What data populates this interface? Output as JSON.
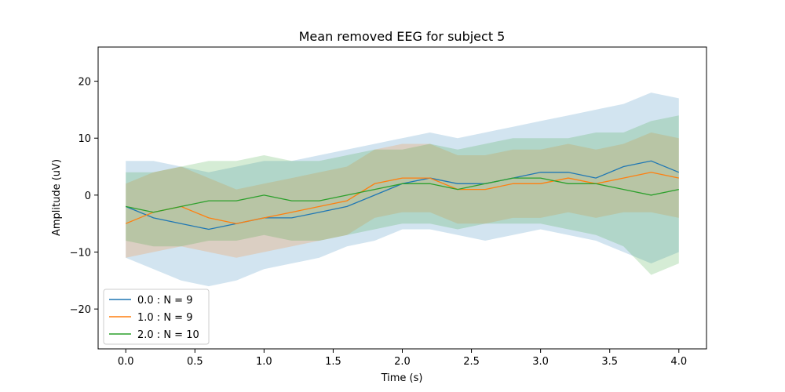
{
  "chart_data": {
    "type": "line",
    "title": "Mean removed EEG for subject 5",
    "xlabel": "Time (s)",
    "ylabel": "Amplitude (uV)",
    "xlim": [
      -0.2,
      4.2
    ],
    "ylim": [
      -27,
      26
    ],
    "xticks": [
      0.0,
      0.5,
      1.0,
      1.5,
      2.0,
      2.5,
      3.0,
      3.5,
      4.0
    ],
    "xtick_labels": [
      "0.0",
      "0.5",
      "1.0",
      "1.5",
      "2.0",
      "2.5",
      "3.0",
      "3.5",
      "4.0"
    ],
    "yticks": [
      -20,
      -10,
      0,
      10,
      20
    ],
    "ytick_labels": [
      "−20",
      "−10",
      "0",
      "10",
      "20"
    ],
    "grid": false,
    "legend_position": "lower-left",
    "x": [
      0.0,
      0.2,
      0.4,
      0.6,
      0.8,
      1.0,
      1.2,
      1.4,
      1.6,
      1.8,
      2.0,
      2.2,
      2.4,
      2.6,
      2.8,
      3.0,
      3.2,
      3.4,
      3.6,
      3.8,
      4.0
    ],
    "series": [
      {
        "name": "0.0 : N = 9",
        "color": "#1f77b4",
        "values": [
          -2,
          -4,
          -5,
          -6,
          -5,
          -4,
          -4,
          -3,
          -2,
          0,
          2,
          3,
          2,
          2,
          3,
          4,
          4,
          3,
          5,
          6,
          4
        ],
        "lower": [
          -11,
          -13,
          -15,
          -16,
          -15,
          -13,
          -12,
          -11,
          -9,
          -8,
          -6,
          -6,
          -7,
          -8,
          -7,
          -6,
          -7,
          -8,
          -10,
          -12,
          -10
        ],
        "upper": [
          6,
          6,
          5,
          4,
          5,
          6,
          6,
          7,
          8,
          9,
          10,
          11,
          10,
          11,
          12,
          13,
          14,
          15,
          16,
          18,
          17
        ]
      },
      {
        "name": "1.0 : N = 9",
        "color": "#ff7f0e",
        "values": [
          -5,
          -3,
          -2,
          -4,
          -5,
          -4,
          -3,
          -2,
          -1,
          2,
          3,
          3,
          1,
          1,
          2,
          2,
          3,
          2,
          3,
          4,
          3
        ],
        "lower": [
          -11,
          -10,
          -9,
          -10,
          -11,
          -10,
          -9,
          -8,
          -7,
          -4,
          -3,
          -3,
          -5,
          -5,
          -4,
          -4,
          -3,
          -4,
          -3,
          -3,
          -4
        ],
        "upper": [
          2,
          4,
          5,
          3,
          1,
          2,
          3,
          4,
          5,
          8,
          9,
          9,
          7,
          7,
          8,
          8,
          9,
          8,
          9,
          11,
          10
        ]
      },
      {
        "name": "2.0 : N = 10",
        "color": "#2ca02c",
        "values": [
          -2,
          -3,
          -2,
          -1,
          -1,
          0,
          -1,
          -1,
          0,
          1,
          2,
          2,
          1,
          2,
          3,
          3,
          2,
          2,
          1,
          0,
          1
        ],
        "lower": [
          -8,
          -9,
          -9,
          -8,
          -8,
          -7,
          -8,
          -8,
          -7,
          -6,
          -5,
          -5,
          -6,
          -5,
          -5,
          -5,
          -6,
          -7,
          -9,
          -14,
          -12
        ],
        "upper": [
          4,
          4,
          5,
          6,
          6,
          7,
          6,
          6,
          7,
          8,
          8,
          9,
          8,
          9,
          10,
          10,
          10,
          11,
          11,
          13,
          14
        ]
      }
    ]
  }
}
